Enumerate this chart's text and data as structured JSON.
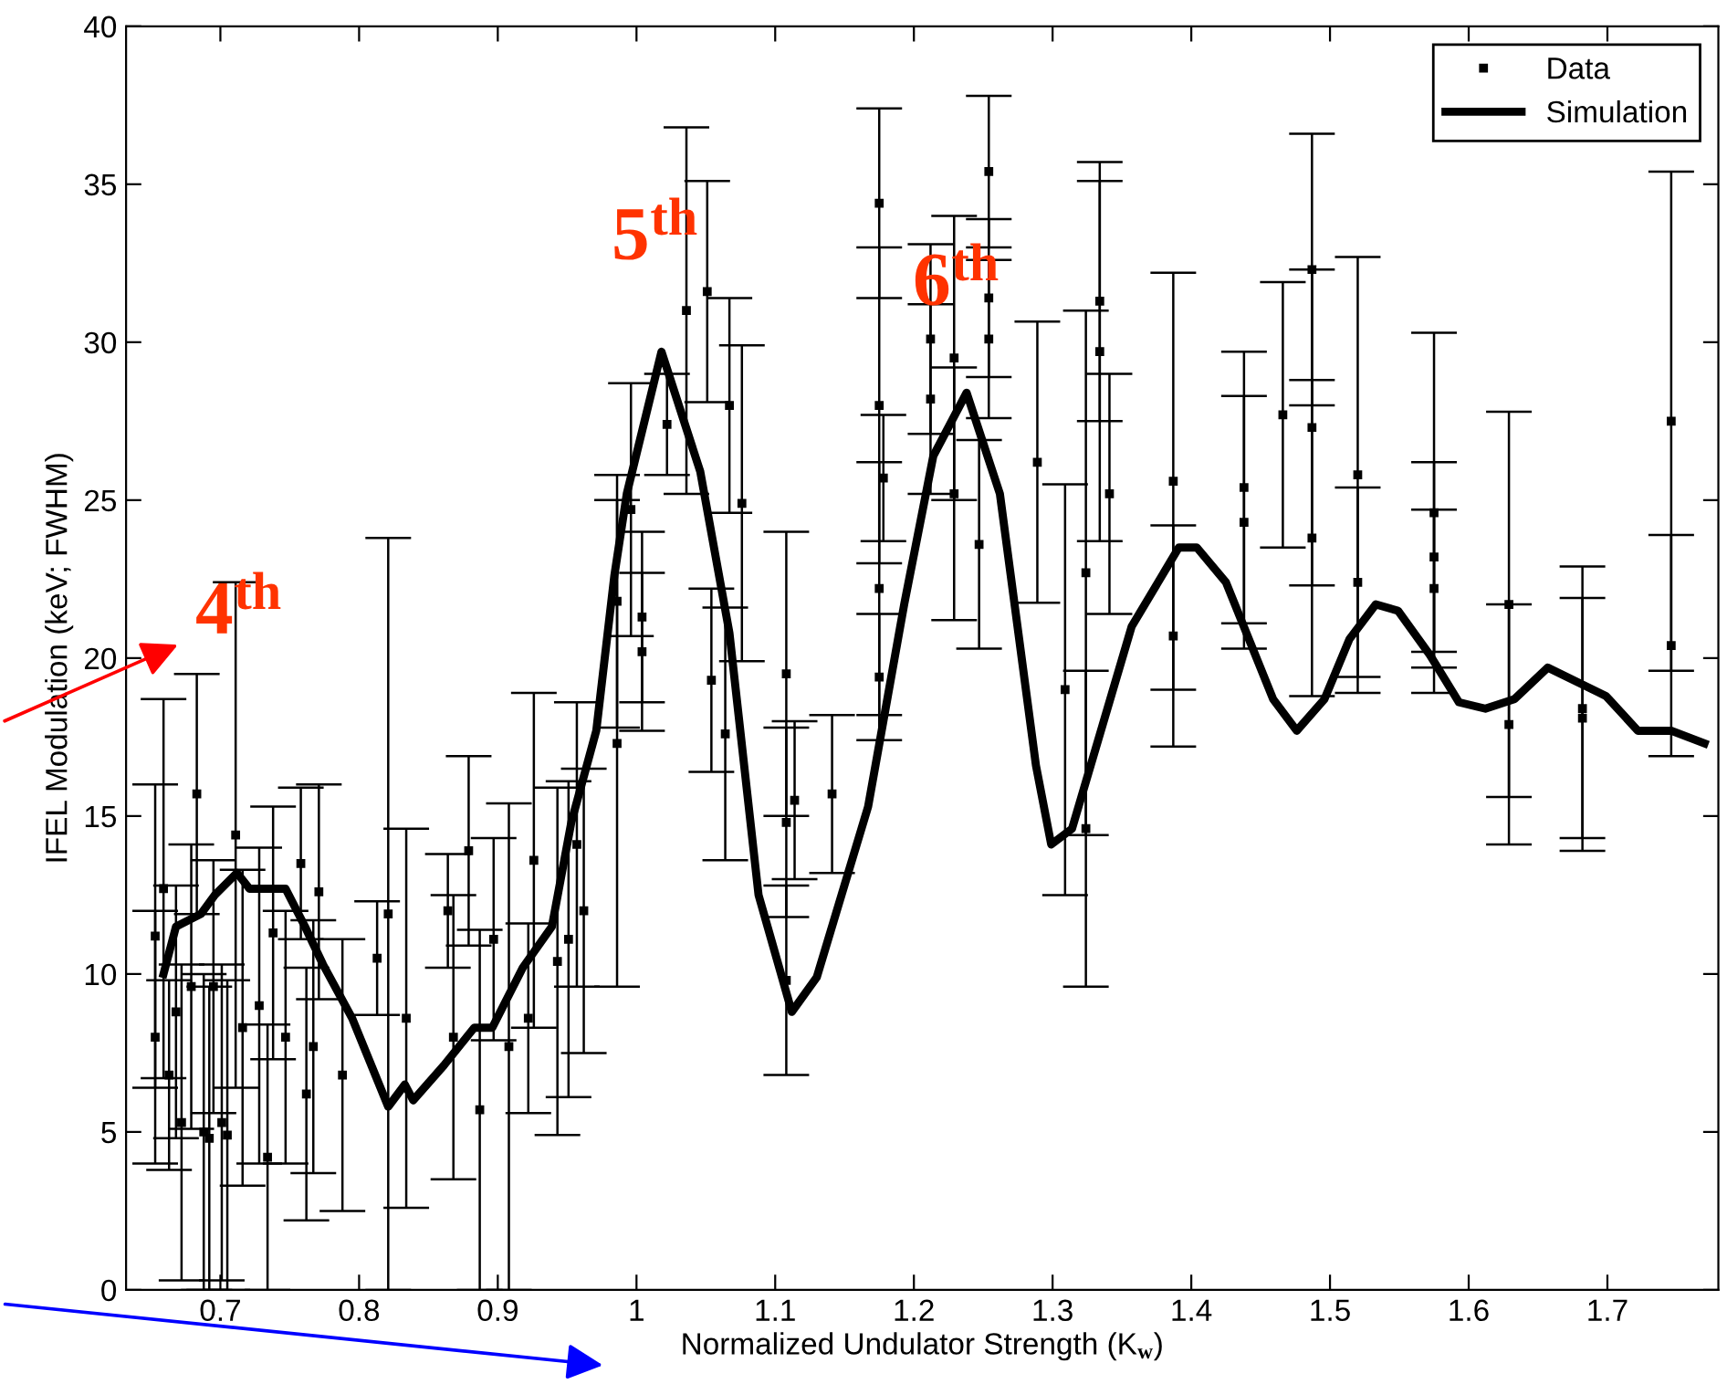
{
  "chart_data": {
    "type": "scatter",
    "xlabel": "Normalized Undulator Strength (K$_{w}$)",
    "ylabel": "IFEL Modulation (keV; FWHM)",
    "xlim": [
      0.632,
      1.78
    ],
    "ylim": [
      0,
      40
    ],
    "xticks": [
      0.7,
      0.8,
      0.9,
      {
        "value": 1.0,
        "label": "1"
      },
      1.1,
      1.2,
      1.3,
      1.4,
      1.5,
      1.6,
      1.7
    ],
    "yticks": [
      0,
      5,
      10,
      15,
      20,
      25,
      30,
      35,
      40
    ],
    "legend": "top right",
    "grid": false,
    "annotations": [
      "4$^{th}$",
      "5$^{th}$",
      "6$^{th}$"
    ],
    "series": [
      {
        "name": "Data",
        "marker": "square",
        "color": "#000000",
        "x": [
          0.653,
          0.653,
          0.659,
          0.663,
          0.668,
          0.672,
          0.679,
          0.683,
          0.688,
          0.692,
          0.695,
          0.701,
          0.705,
          0.711,
          0.716,
          0.728,
          0.734,
          0.738,
          0.747,
          0.758,
          0.762,
          0.767,
          0.771,
          0.788,
          0.813,
          0.821,
          0.834,
          0.864,
          0.868,
          0.879,
          0.887,
          0.897,
          0.908,
          0.922,
          0.926,
          0.943,
          0.951,
          0.957,
          0.962,
          0.986,
          0.986,
          0.996,
          1.004,
          1.004,
          1.022,
          1.036,
          1.051,
          1.054,
          1.064,
          1.067,
          1.076,
          1.108,
          1.108,
          1.108,
          1.114,
          1.141,
          1.175,
          1.175,
          1.175,
          1.178,
          1.175,
          1.212,
          1.212,
          1.229,
          1.229,
          1.247,
          1.254,
          1.254,
          1.254,
          1.289,
          1.309,
          1.324,
          1.324,
          1.334,
          1.334,
          1.341,
          1.387,
          1.387,
          1.438,
          1.438,
          1.466,
          1.487,
          1.487,
          1.487,
          1.52,
          1.52,
          1.575,
          1.575,
          1.575,
          1.629,
          1.629,
          1.682,
          1.682,
          1.746,
          1.746
        ],
        "values": [
          11.2,
          8.0,
          12.7,
          6.8,
          8.8,
          5.3,
          9.6,
          15.7,
          5.0,
          4.8,
          9.6,
          5.3,
          4.9,
          14.4,
          8.3,
          9.0,
          4.2,
          11.3,
          8.0,
          13.5,
          6.2,
          7.7,
          12.6,
          6.8,
          10.5,
          11.9,
          8.6,
          12.0,
          8.0,
          13.9,
          5.7,
          11.1,
          7.7,
          8.6,
          13.6,
          10.4,
          11.1,
          14.1,
          12.0,
          17.3,
          21.8,
          24.7,
          21.3,
          20.2,
          27.4,
          31.0,
          31.6,
          19.3,
          17.6,
          28.0,
          24.9,
          19.5,
          14.8,
          9.8,
          15.5,
          15.7,
          34.4,
          28.0,
          22.2,
          25.7,
          19.4,
          30.1,
          28.2,
          29.5,
          25.2,
          23.6,
          35.4,
          31.4,
          30.1,
          26.2,
          19.0,
          22.7,
          14.6,
          31.3,
          29.7,
          25.2,
          25.6,
          20.7,
          25.4,
          24.3,
          27.7,
          32.3,
          27.3,
          23.8,
          25.8,
          22.4,
          24.6,
          23.2,
          22.2,
          21.7,
          17.9,
          18.4,
          18.1,
          27.5,
          20.4
        ],
        "errors": [
          4.8,
          4,
          6,
          3,
          4,
          5,
          4.5,
          3.8,
          5,
          4.8,
          4,
          5,
          4.9,
          8,
          5,
          5,
          4.2,
          4,
          4,
          2.4,
          4,
          4,
          3.4,
          4.3,
          1.8,
          11.9,
          6,
          1.8,
          4.5,
          3,
          5.7,
          3.2,
          7.7,
          3,
          5.3,
          5.5,
          5,
          4.5,
          4.5,
          7.7,
          4,
          4,
          2.7,
          2.5,
          1.6,
          5.8,
          3.5,
          2.9,
          4,
          3.4,
          5,
          4.5,
          3,
          3,
          2.5,
          2.5,
          3,
          5,
          4,
          2,
          2,
          3,
          3,
          4.5,
          4,
          3.3,
          2.4,
          2.5,
          2.5,
          4.45,
          6.5,
          8.3,
          5,
          3.8,
          6,
          3.8,
          6.6,
          3.5,
          4.3,
          4,
          4.2,
          4.3,
          5,
          5,
          6.9,
          3,
          5.7,
          3,
          2.5,
          6.1,
          3.8,
          4.5,
          3.8,
          7.9,
          3.5
        ]
      },
      {
        "name": "Simulation",
        "type": "line",
        "marker": "none",
        "line_style": "solid",
        "color": "#000000",
        "x": [
          0.659,
          0.668,
          0.686,
          0.696,
          0.712,
          0.721,
          0.747,
          0.761,
          0.774,
          0.795,
          0.821,
          0.833,
          0.839,
          0.861,
          0.883,
          0.896,
          0.918,
          0.939,
          0.953,
          0.971,
          0.984,
          0.993,
          1.018,
          1.046,
          1.067,
          1.088,
          1.112,
          1.13,
          1.167,
          1.193,
          1.214,
          1.238,
          1.262,
          1.288,
          1.299,
          1.314,
          1.357,
          1.391,
          1.404,
          1.425,
          1.459,
          1.476,
          1.496,
          1.514,
          1.533,
          1.549,
          1.572,
          1.593,
          1.612,
          1.633,
          1.657,
          1.699,
          1.722,
          1.746,
          1.77
        ],
        "values": [
          10.0,
          11.5,
          11.9,
          12.5,
          13.2,
          12.7,
          12.7,
          11.5,
          10.3,
          8.6,
          5.8,
          6.5,
          6.0,
          7.1,
          8.3,
          8.3,
          10.2,
          11.5,
          14.8,
          17.7,
          22.6,
          25.2,
          29.7,
          25.9,
          20.8,
          12.5,
          8.8,
          9.9,
          15.3,
          21.7,
          26.4,
          28.4,
          25.2,
          16.6,
          14.1,
          14.6,
          21.0,
          23.5,
          23.5,
          22.4,
          18.7,
          17.7,
          18.7,
          20.6,
          21.7,
          21.5,
          20.1,
          18.6,
          18.4,
          18.7,
          19.7,
          18.8,
          17.7,
          17.7,
          17.3
        ]
      }
    ]
  }
}
